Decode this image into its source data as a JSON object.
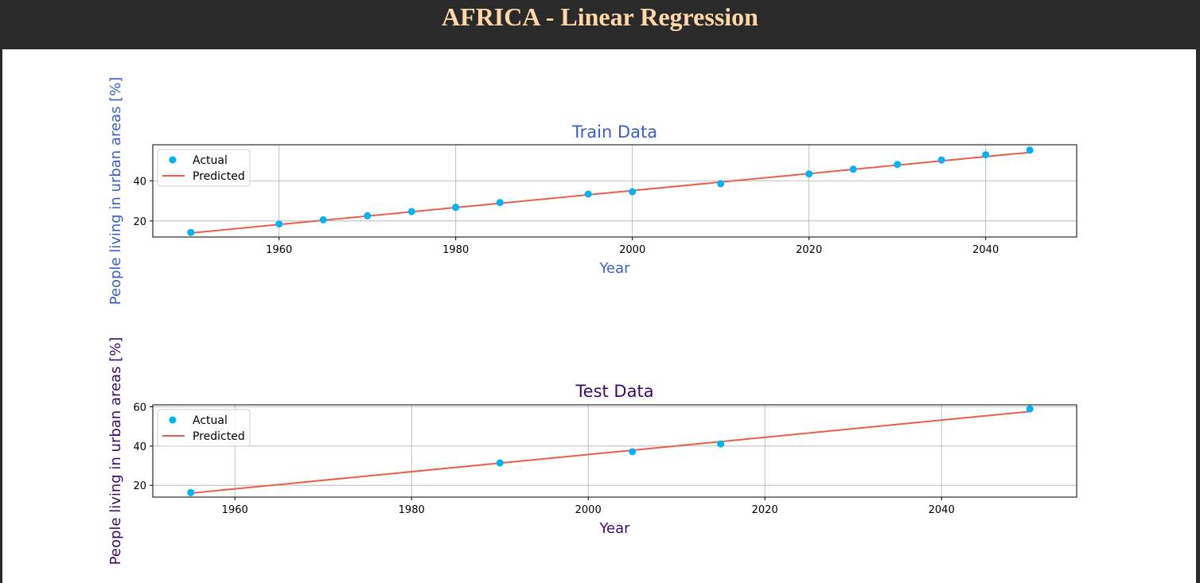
{
  "page": {
    "title": "AFRICA - Linear Regression",
    "background": "#2a2a2a",
    "title_color": "#ffd7a8",
    "panel_color": "#ffffff"
  },
  "chart_data": [
    {
      "type": "scatter",
      "title": "Train Data",
      "xlabel": "Year",
      "ylabel": "People living in urban areas [%]",
      "label_color": "#3a5fcd",
      "xlim": [
        1945.7,
        2050.3
      ],
      "ylim": [
        12,
        58
      ],
      "xticks": [
        1960,
        1980,
        2000,
        2020,
        2040
      ],
      "yticks": [
        20,
        40
      ],
      "grid": true,
      "legend": "upper-left",
      "series": [
        {
          "name": "Actual",
          "kind": "scatter",
          "color": "#00b4f0",
          "x": [
            1950,
            1960,
            1965,
            1970,
            1975,
            1980,
            1985,
            1995,
            2000,
            2010,
            2020,
            2025,
            2030,
            2035,
            2040,
            2045
          ],
          "y": [
            14.3,
            18.5,
            20.6,
            22.6,
            24.7,
            26.8,
            29.2,
            33.4,
            34.6,
            38.6,
            43.5,
            45.8,
            48.2,
            50.4,
            53.0,
            55.3
          ]
        },
        {
          "name": "Predicted",
          "kind": "line",
          "color": "#e8604c",
          "x": [
            1950,
            2045
          ],
          "y": [
            14.0,
            54.2
          ]
        }
      ]
    },
    {
      "type": "scatter",
      "title": "Test Data",
      "xlabel": "Year",
      "ylabel": "People living in urban areas [%]",
      "label_color": "#3d0a6b",
      "xlim": [
        1950.7,
        2055.3
      ],
      "ylim": [
        14,
        61
      ],
      "xticks": [
        1960,
        1980,
        2000,
        2020,
        2040
      ],
      "yticks": [
        20,
        40,
        60
      ],
      "grid": true,
      "legend": "upper-left",
      "series": [
        {
          "name": "Actual",
          "kind": "scatter",
          "color": "#00b4f0",
          "x": [
            1955,
            1990,
            2005,
            2015,
            2050
          ],
          "y": [
            16.3,
            31.4,
            37.1,
            41.1,
            58.9
          ]
        },
        {
          "name": "Predicted",
          "kind": "line",
          "color": "#e8604c",
          "x": [
            1955,
            2050
          ],
          "y": [
            16.0,
            57.6
          ]
        }
      ]
    }
  ]
}
